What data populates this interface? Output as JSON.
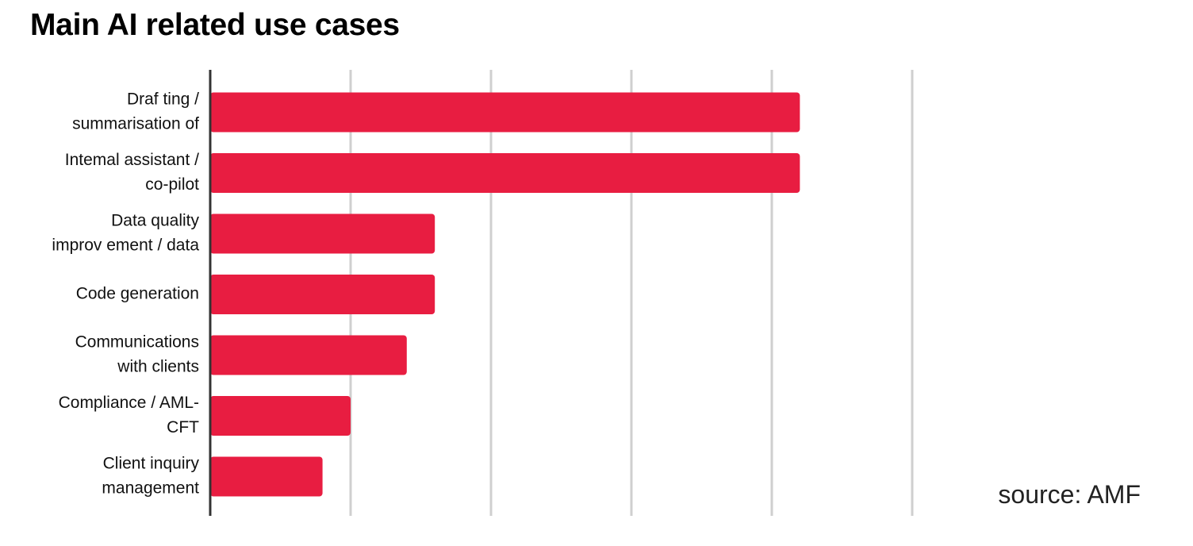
{
  "chart_data": {
    "type": "bar",
    "orientation": "horizontal",
    "title": "Main AI related use cases",
    "categories": [
      [
        "Draf ting /",
        "summarisation of"
      ],
      [
        "Intemal assistant /",
        "co-pilot"
      ],
      [
        "Data quality",
        "improv ement / data"
      ],
      [
        "Code generation"
      ],
      [
        "Communications",
        "with clients"
      ],
      [
        "Compliance / AML-",
        "CFT"
      ],
      [
        "Client inquiry",
        "management"
      ]
    ],
    "values": [
      42,
      42,
      16,
      16,
      14,
      10,
      8
    ],
    "xlim": [
      0,
      50
    ],
    "x_gridline_step": 10,
    "x_tick_labels_shown": false,
    "grid": true,
    "legend": "none",
    "bar_color": "#E81D41",
    "axis_color": "#333333",
    "grid_color": "#CFCFCF",
    "source": "source: AMF"
  }
}
